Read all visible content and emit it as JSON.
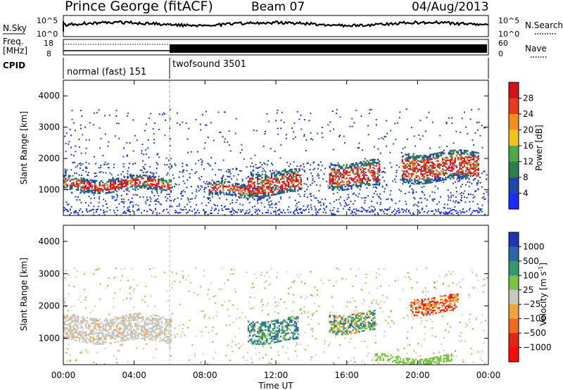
{
  "header": {
    "station": "Prince George (fitACF)",
    "beam": "Beam 07",
    "date": "04/Aug/2013"
  },
  "noise_panel": {
    "left_label": "N.Sky",
    "right_label": "N.Search",
    "ticks": [
      "10^5",
      "10^0"
    ]
  },
  "freq_panel": {
    "left_label_top": "Freq.",
    "left_label_bottom": "[MHz]",
    "left_ticks": [
      "18",
      "8"
    ],
    "right_label": "Nave",
    "right_ticks": [
      "60",
      "0"
    ]
  },
  "cpid_panel": {
    "label": "CPID",
    "segments": [
      {
        "name": "normal (fast) 151",
        "start_hour": 0,
        "end_hour": 6
      },
      {
        "name": "twofsound 3501",
        "start_hour": 6,
        "end_hour": 24
      }
    ]
  },
  "chart_data": [
    {
      "type": "heatmap",
      "title": "",
      "xlabel": "",
      "ylabel": "Slant Range [km]",
      "x_ticks": [
        "00:00",
        "04:00",
        "08:00",
        "12:00",
        "16:00",
        "20:00",
        "00:00"
      ],
      "x_range_hours": [
        0,
        24
      ],
      "y_ticks": [
        "1000",
        "2000",
        "3000",
        "4000"
      ],
      "y_range_km": [
        180,
        4500
      ],
      "colorbar": {
        "label": "Power [dB]",
        "ticks": [
          "4",
          "8",
          "12",
          "16",
          "20",
          "24",
          "28"
        ],
        "range": [
          0,
          30
        ],
        "colors": [
          "#1a2bff",
          "#1c48a8",
          "#2e7d4f",
          "#4fa84a",
          "#f0c419",
          "#f58d1e",
          "#e83a1e",
          "#d5121c"
        ]
      },
      "features": [
        {
          "hours": [
            0,
            6.1
          ],
          "range_km": [
            1000,
            1400
          ],
          "level": "high power (red/orange)"
        },
        {
          "hours": [
            8.2,
            11.3
          ],
          "range_km": [
            800,
            1200
          ],
          "level": "high power (red)"
        },
        {
          "hours": [
            10.4,
            13.4
          ],
          "range_km": [
            900,
            1600
          ],
          "level": "high power (red)"
        },
        {
          "hours": [
            15.0,
            17.8
          ],
          "range_km": [
            1100,
            1900
          ],
          "level": "high power (red/orange)"
        },
        {
          "hours": [
            19.1,
            23.4
          ],
          "range_km": [
            1300,
            2200
          ],
          "level": "moderate power (green/orange)"
        }
      ]
    },
    {
      "type": "heatmap",
      "title": "",
      "xlabel": "Time UT",
      "ylabel": "Slant Range [km]",
      "x_ticks": [
        "00:00",
        "04:00",
        "08:00",
        "12:00",
        "16:00",
        "20:00",
        "00:00"
      ],
      "x_range_hours": [
        0,
        24
      ],
      "y_ticks": [
        "1000",
        "2000",
        "3000",
        "4000"
      ],
      "y_range_km": [
        180,
        4500
      ],
      "colorbar": {
        "label": "Velocity [m s",
        "label_sup": "-1",
        "label_end": "]",
        "ticks": [
          "1000",
          "500",
          "100",
          "25",
          "−25",
          "−100",
          "−500",
          "−1000"
        ],
        "colors": [
          "#2034b4",
          "#2d66a8",
          "#2f9a6a",
          "#7cc243",
          "#c8c8c0",
          "#f2a33a",
          "#f06a1e",
          "#e42316",
          "#ff0a0a"
        ]
      },
      "features": [
        {
          "hours": [
            0,
            6.1
          ],
          "range_km": [
            900,
            1700
          ],
          "level": "ground scatter (grey)"
        },
        {
          "hours": [
            10.4,
            13.2
          ],
          "range_km": [
            900,
            1600
          ],
          "level": "positive (blue/green)"
        },
        {
          "hours": [
            15.0,
            17.6
          ],
          "range_km": [
            1200,
            1800
          ],
          "level": "mixed (green/orange)"
        },
        {
          "hours": [
            19.6,
            22.3
          ],
          "range_km": [
            1800,
            2300
          ],
          "level": "negative (red/orange)"
        }
      ]
    }
  ]
}
